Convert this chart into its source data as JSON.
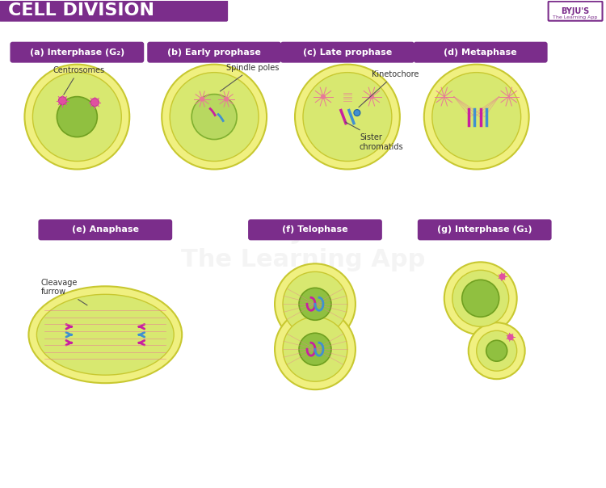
{
  "title": "CELL DIVISION",
  "title_bg": "#7B2D8B",
  "title_text_color": "#FFFFFF",
  "bg_color": "#FFFFFF",
  "label_bg": "#7B2D8B",
  "label_text_color": "#FFFFFF",
  "cell_outer_color": "#E8E870",
  "cell_inner_color": "#C8D870",
  "nucleus_color": "#98C840",
  "cell_border_color": "#D4C830",
  "stages_row1": [
    "(a) Interphase (G₂)",
    "(b) Early prophase",
    "(c) Late prophase",
    "(d) Metaphase"
  ],
  "stages_row2": [
    "(e) Anaphase",
    "(f) Telophase",
    "(g) Interphase (G₁)"
  ],
  "annotations_row1": [
    "Centrosomes",
    "Spindle poles",
    "Kinetochore",
    "Sister\nchromatids"
  ],
  "annotation_row2": [
    "Cleavage\nfurrow"
  ],
  "pink": "#E8508A",
  "blue": "#4090D0",
  "magenta": "#C820A0",
  "spindle_color": "#E87898"
}
